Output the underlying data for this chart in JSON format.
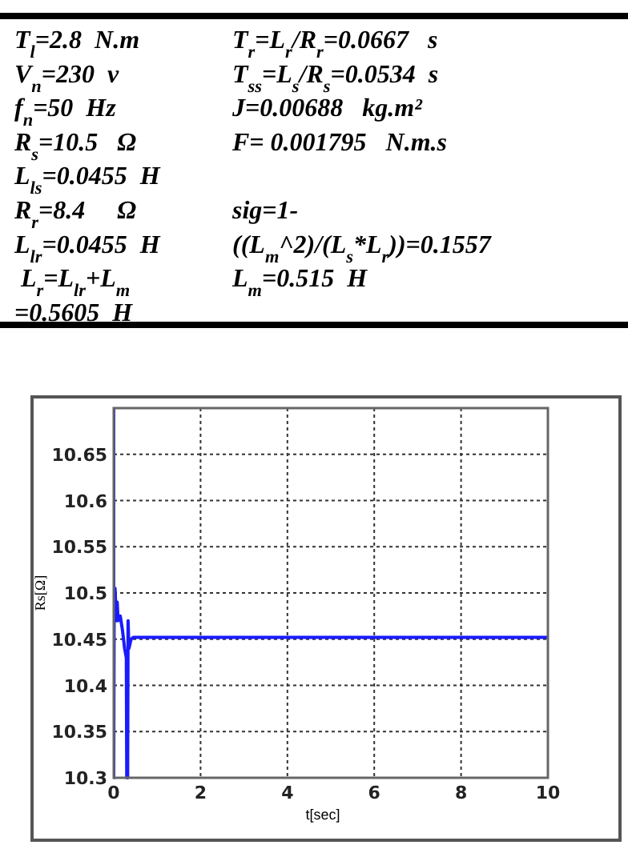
{
  "chart_data": [
    {
      "type": "other",
      "annotations": [
        "T$_{l}$=2.8  N.m",
        "V$_{n}$=230  v",
        "f$_{n}$=50  Hz",
        "R$_{s}$=10.5   Ω",
        "L$_{ls}$=0.0455  H",
        "R$_{r}$=8.4     Ω",
        "L$_{lr}$=0.0455  H",
        "L$_{r}$=L$_{lr}$+L$_{m}$",
        "=0.5605  H",
        "T$_{r}$=L$_{r}$/R$_{r}$=0.0667   s",
        "T$_{ss}$=L$_{s}$/R$_{s}$=0.0534  s",
        "J=0.00688   kg.m²",
        "F= 0.001795   N.m.s",
        "sig=1-",
        "((L$_{m}$^2)/(L$_{s}$*L$_{r}$))=0.1557",
        "L$_{m}$=0.515  H"
      ]
    },
    {
      "type": "line",
      "xlabel": "t[sec]",
      "ylabel": "Rs[Ω]",
      "xlim": [
        0,
        10
      ],
      "ylim": [
        10.3,
        10.7
      ],
      "xticks": [
        0,
        2,
        4,
        6,
        8,
        10
      ],
      "yticks": [
        10.3,
        10.35,
        10.4,
        10.45,
        10.5,
        10.55,
        10.6,
        10.65
      ],
      "grid": true,
      "series": [
        {
          "color": "#1a1aff",
          "x": [
            0,
            0,
            0.01,
            0.03,
            0.06,
            0.08,
            0.1,
            0.15,
            0.2,
            0.25,
            0.29,
            0.3,
            0.32,
            0.33,
            0.35,
            0.4,
            0.45,
            10
          ],
          "values": [
            10.7,
            10.3,
            10.5,
            10.505,
            10.47,
            10.49,
            10.47,
            10.475,
            10.46,
            10.44,
            10.43,
            10.3,
            10.3,
            10.47,
            10.44,
            10.45,
            10.452,
            10.452
          ]
        }
      ]
    }
  ]
}
